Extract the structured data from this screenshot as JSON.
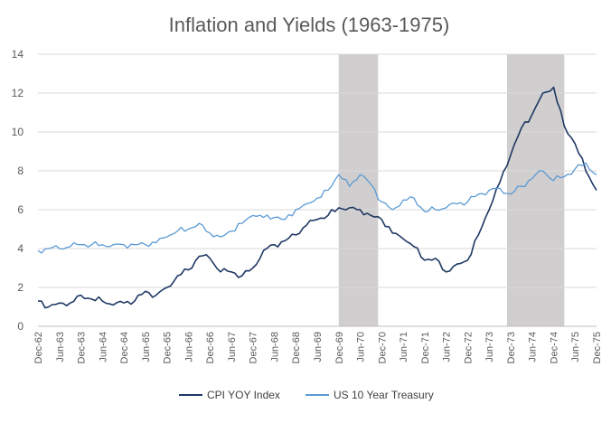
{
  "chart_data": {
    "type": "line",
    "title": "Inflation and Yields (1963-1975)",
    "xlabel": "",
    "ylabel": "",
    "ylim": [
      0,
      14
    ],
    "yticks": [
      0,
      2,
      4,
      6,
      8,
      10,
      12,
      14
    ],
    "grid": "horizontal",
    "legend_position": "bottom",
    "x_start": "Dec-62",
    "x_end": "Dec-75",
    "x_tick_labels": [
      "Dec-62",
      "Jun-63",
      "Dec-63",
      "Jun-64",
      "Dec-64",
      "Jun-65",
      "Dec-65",
      "Jun-66",
      "Dec-66",
      "Jun-67",
      "Dec-67",
      "Jun-68",
      "Dec-68",
      "Jun-69",
      "Dec-69",
      "Jun-70",
      "Dec-70",
      "Jun-71",
      "Dec-71",
      "Jun-72",
      "Dec-72",
      "Jun-73",
      "Dec-73",
      "Jun-74",
      "Dec-74",
      "Jun-75",
      "Dec-75"
    ],
    "shaded_ranges": [
      [
        "Dec-69",
        "Nov-70"
      ],
      [
        "Nov-73",
        "Mar-75"
      ]
    ],
    "series": [
      {
        "name": "CPI YOY Index",
        "color": "#1f3864",
        "values": [
          [
            "Dec-62",
            1.3
          ],
          [
            "Mar-63",
            1.0
          ],
          [
            "Jun-63",
            1.2
          ],
          [
            "Sep-63",
            1.2
          ],
          [
            "Dec-63",
            1.6
          ],
          [
            "Mar-64",
            1.4
          ],
          [
            "Jun-64",
            1.3
          ],
          [
            "Sep-64",
            1.1
          ],
          [
            "Dec-64",
            1.2
          ],
          [
            "Mar-65",
            1.3
          ],
          [
            "Jun-65",
            1.8
          ],
          [
            "Sep-65",
            1.6
          ],
          [
            "Dec-65",
            2.0
          ],
          [
            "Mar-66",
            2.6
          ],
          [
            "Jun-66",
            2.9
          ],
          [
            "Sep-66",
            3.6
          ],
          [
            "Dec-66",
            3.5
          ],
          [
            "Mar-67",
            2.8
          ],
          [
            "Jun-67",
            2.8
          ],
          [
            "Sep-67",
            2.6
          ],
          [
            "Dec-67",
            3.0
          ],
          [
            "Mar-68",
            3.9
          ],
          [
            "Jun-68",
            4.2
          ],
          [
            "Sep-68",
            4.4
          ],
          [
            "Dec-68",
            4.7
          ],
          [
            "Mar-69",
            5.2
          ],
          [
            "Jun-69",
            5.5
          ],
          [
            "Sep-69",
            5.7
          ],
          [
            "Dec-69",
            6.1
          ],
          [
            "Mar-70",
            6.1
          ],
          [
            "Jun-70",
            6.0
          ],
          [
            "Sep-70",
            5.7
          ],
          [
            "Dec-70",
            5.5
          ],
          [
            "Mar-71",
            4.8
          ],
          [
            "Jun-71",
            4.5
          ],
          [
            "Sep-71",
            4.1
          ],
          [
            "Dec-71",
            3.4
          ],
          [
            "Mar-72",
            3.5
          ],
          [
            "Jun-72",
            2.8
          ],
          [
            "Sep-72",
            3.2
          ],
          [
            "Dec-72",
            3.4
          ],
          [
            "Mar-73",
            4.7
          ],
          [
            "Jun-73",
            6.0
          ],
          [
            "Sep-73",
            7.4
          ],
          [
            "Dec-73",
            8.8
          ],
          [
            "Mar-74",
            10.2
          ],
          [
            "Jun-74",
            10.9
          ],
          [
            "Sep-74",
            12.0
          ],
          [
            "Dec-74",
            12.3
          ],
          [
            "Mar-75",
            10.3
          ],
          [
            "Jun-75",
            9.4
          ],
          [
            "Sep-75",
            8.0
          ],
          [
            "Dec-75",
            7.0
          ]
        ]
      },
      {
        "name": "US 10 Year Treasury",
        "color": "#5b9bd5",
        "values": [
          [
            "Dec-62",
            3.9
          ],
          [
            "Mar-63",
            4.0
          ],
          [
            "Jun-63",
            4.0
          ],
          [
            "Sep-63",
            4.1
          ],
          [
            "Dec-63",
            4.2
          ],
          [
            "Mar-64",
            4.2
          ],
          [
            "Jun-64",
            4.2
          ],
          [
            "Sep-64",
            4.2
          ],
          [
            "Dec-64",
            4.2
          ],
          [
            "Mar-65",
            4.2
          ],
          [
            "Jun-65",
            4.2
          ],
          [
            "Sep-65",
            4.3
          ],
          [
            "Dec-65",
            4.6
          ],
          [
            "Mar-66",
            4.9
          ],
          [
            "Jun-66",
            5.0
          ],
          [
            "Sep-66",
            5.3
          ],
          [
            "Dec-66",
            4.8
          ],
          [
            "Mar-67",
            4.6
          ],
          [
            "Jun-67",
            4.9
          ],
          [
            "Sep-67",
            5.3
          ],
          [
            "Dec-67",
            5.7
          ],
          [
            "Mar-68",
            5.6
          ],
          [
            "Jun-68",
            5.6
          ],
          [
            "Sep-68",
            5.5
          ],
          [
            "Dec-68",
            6.0
          ],
          [
            "Mar-69",
            6.3
          ],
          [
            "Jun-69",
            6.6
          ],
          [
            "Sep-69",
            7.0
          ],
          [
            "Dec-69",
            7.8
          ],
          [
            "Mar-70",
            7.2
          ],
          [
            "Jun-70",
            7.8
          ],
          [
            "Sep-70",
            7.3
          ],
          [
            "Dec-70",
            6.4
          ],
          [
            "Mar-71",
            6.0
          ],
          [
            "Jun-71",
            6.5
          ],
          [
            "Sep-71",
            6.6
          ],
          [
            "Dec-71",
            5.9
          ],
          [
            "Mar-72",
            6.0
          ],
          [
            "Jun-72",
            6.1
          ],
          [
            "Sep-72",
            6.3
          ],
          [
            "Dec-72",
            6.4
          ],
          [
            "Mar-73",
            6.8
          ],
          [
            "Jun-73",
            7.0
          ],
          [
            "Sep-73",
            7.1
          ],
          [
            "Dec-73",
            6.8
          ],
          [
            "Mar-74",
            7.2
          ],
          [
            "Jun-74",
            7.6
          ],
          [
            "Sep-74",
            8.0
          ],
          [
            "Dec-74",
            7.5
          ],
          [
            "Mar-75",
            7.7
          ],
          [
            "Jun-75",
            8.1
          ],
          [
            "Sep-75",
            8.4
          ],
          [
            "Dec-75",
            7.8
          ]
        ]
      }
    ]
  }
}
